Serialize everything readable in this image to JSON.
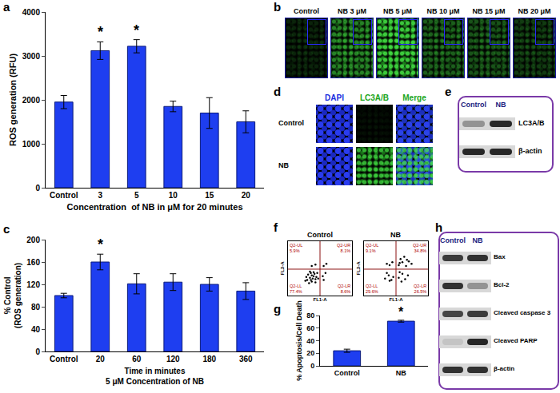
{
  "panel_labels": [
    "a",
    "b",
    "c",
    "d",
    "e",
    "f",
    "g",
    "h"
  ],
  "chart_data": [
    {
      "type": "bar",
      "categories": [
        "Control",
        "3",
        "5",
        "10",
        "15",
        "20"
      ],
      "values": [
        1950,
        3120,
        3220,
        1850,
        1700,
        1500
      ],
      "errors": [
        150,
        200,
        150,
        120,
        350,
        250
      ],
      "color": "#1e3ef0",
      "x_label": "Concentration  of NB in μM for 20 minutes",
      "y_label": "ROS generation (RFU)",
      "ylim": [
        0,
        4000
      ],
      "yticks": [
        0,
        1000,
        2000,
        3000,
        4000
      ],
      "grid": false,
      "annotations": [
        {
          "category": "3",
          "text": "*"
        },
        {
          "category": "5",
          "text": "*"
        }
      ]
    },
    {
      "type": "bar",
      "categories": [
        "Control",
        "20",
        "60",
        "120",
        "180",
        "360"
      ],
      "values": [
        100,
        160,
        121,
        124,
        120,
        108
      ],
      "errors": [
        4,
        14,
        18,
        15,
        12,
        15
      ],
      "color": "#1e3ef0",
      "x_label": [
        "Time in minutes",
        "5 μM Concentration of NB"
      ],
      "y_label": [
        "% Control",
        "(ROS generation)"
      ],
      "ylim": [
        0,
        200
      ],
      "yticks": [
        0,
        40,
        80,
        120,
        160,
        200
      ],
      "grid": false,
      "annotations": [
        {
          "category": "20",
          "text": "*"
        }
      ]
    },
    {
      "type": "scatter",
      "title": "Control",
      "x": [
        2.1,
        2.4,
        2.6,
        2.8,
        3.0,
        2.2,
        2.5,
        2.9,
        3.1,
        2.7,
        2.3,
        3.2,
        2.0,
        2.6,
        3.0,
        2.4,
        2.8,
        3.3,
        1.9,
        2.5,
        3.8,
        4.1,
        3.9,
        2.6,
        3.0,
        3.9,
        4.2
      ],
      "y": [
        2.0,
        2.3,
        1.8,
        2.5,
        2.1,
        2.7,
        2.9,
        2.8,
        2.4,
        2.2,
        1.6,
        2.9,
        2.4,
        2.6,
        1.7,
        3.1,
        3.0,
        2.2,
        1.9,
        2.0,
        2.5,
        2.9,
        2.0,
        3.8,
        4.0,
        3.8,
        4.1
      ],
      "color": "#000000",
      "marker": "circle",
      "x_label": "FL1-A",
      "y_label": "FL3-A",
      "xlim": [
        0,
        7
      ],
      "ylim": [
        0,
        7
      ],
      "tick_labels": false,
      "gate": {
        "x": 3.5,
        "y": 3.4
      },
      "quadrants": [
        {
          "name": "Q2-UL",
          "value": 5.9,
          "value_label": "5.9%"
        },
        {
          "name": "Q2-UR",
          "value": 8.1,
          "value_label": "8.1%"
        },
        {
          "name": "Q2-LL",
          "value": 77.4,
          "value_label": "77.4%"
        },
        {
          "name": "Q2-LR",
          "value": 8.6,
          "value_label": "8.6%"
        }
      ]
    },
    {
      "type": "scatter",
      "title": "NB",
      "x": [
        2.3,
        2.7,
        3.0,
        2.5,
        3.2,
        2.8,
        3.8,
        4.2,
        4.5,
        3.9,
        4.8,
        4.1,
        3.8,
        4.2,
        4.6,
        4.0,
        4.9,
        4.4,
        5.2,
        3.9,
        4.7,
        2.8,
        3.1,
        2.5
      ],
      "y": [
        2.2,
        2.6,
        2.0,
        2.9,
        2.4,
        1.9,
        2.3,
        2.8,
        2.1,
        3.0,
        2.6,
        1.8,
        3.9,
        4.3,
        3.8,
        4.7,
        4.4,
        5.0,
        4.1,
        4.2,
        4.6,
        3.9,
        4.3,
        4.1
      ],
      "color": "#000000",
      "marker": "circle",
      "x_label": "FL1-A",
      "y_label": "FL3-A",
      "xlim": [
        0,
        7
      ],
      "ylim": [
        0,
        7
      ],
      "tick_labels": false,
      "gate": {
        "x": 3.5,
        "y": 3.4
      },
      "quadrants": [
        {
          "name": "Q2-UL",
          "value": 9.1,
          "value_label": "9.1%"
        },
        {
          "name": "Q2-UR",
          "value": 34.8,
          "value_label": "34.8%"
        },
        {
          "name": "Q2-LL",
          "value": 29.6,
          "value_label": "29.6%"
        },
        {
          "name": "Q2-LR",
          "value": 26.5,
          "value_label": "26.5%"
        }
      ]
    },
    {
      "type": "bar",
      "categories": [
        "Control",
        "NB"
      ],
      "values": [
        24,
        71
      ],
      "errors": [
        2.5,
        1.5
      ],
      "color": "#1e3ef0",
      "y_label": "% Apoptosis/Cell Death",
      "ylim": [
        0,
        80
      ],
      "yticks": [
        0,
        20,
        40,
        60,
        80
      ],
      "grid": false,
      "annotations": [
        {
          "category": "NB",
          "text": "*"
        }
      ]
    }
  ],
  "images_b": {
    "labels": [
      "Control",
      "NB 3 μM",
      "NB 5 μM",
      "NB 10 μM",
      "NB 15 μM",
      "NB 20 μM"
    ],
    "signal": [
      0.15,
      0.55,
      0.85,
      0.4,
      0.35,
      0.25
    ]
  },
  "images_d": {
    "columns": [
      "DAPI",
      "LC3A/B",
      "Merge"
    ],
    "rows": [
      "Control",
      "NB"
    ],
    "signal": [
      0.05,
      0.75
    ]
  },
  "blot_e": {
    "lanes": [
      "Control",
      "NB"
    ],
    "rows": [
      {
        "label": "LC3A/B",
        "intensity": [
          0.35,
          0.9
        ]
      },
      {
        "label": "β-actin",
        "intensity": [
          0.9,
          0.9
        ]
      }
    ]
  },
  "blot_h": {
    "lanes": [
      "Control",
      "NB"
    ],
    "rows": [
      {
        "label": "Bax",
        "intensity": [
          0.8,
          0.85
        ]
      },
      {
        "label": "Bcl-2",
        "intensity": [
          0.85,
          0.35
        ]
      },
      {
        "label": "Cleaved caspase 3",
        "intensity": [
          0.75,
          0.8
        ]
      },
      {
        "label": "Cleaved PARP",
        "intensity": [
          0.1,
          0.9
        ]
      },
      {
        "label": "β-actin",
        "intensity": [
          0.85,
          0.85
        ]
      }
    ]
  }
}
